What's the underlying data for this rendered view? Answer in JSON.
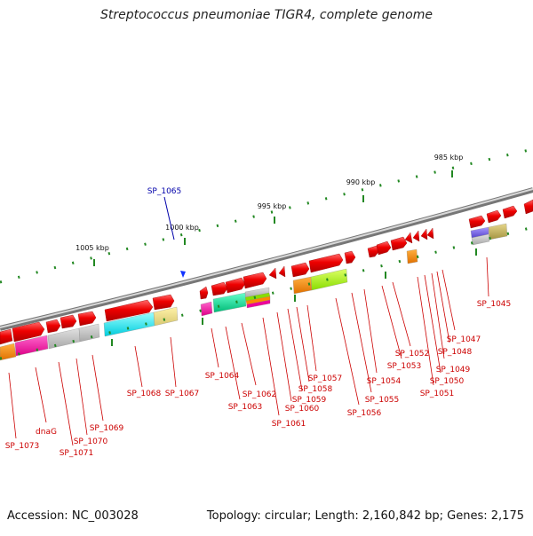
{
  "title": "Streptococcus pneumoniae TIGR4, complete genome",
  "accession": "Accession: NC_003028",
  "summary": "Topology: circular; Length: 2,160,842 bp; Genes: 2,175",
  "ruler_labels": [
    "985 kbp",
    "990 kbp",
    "995 kbp",
    "1000 kbp",
    "1005 kbp"
  ],
  "highlight_gene": "SP_1065",
  "colors": {
    "gene": "#ee0000",
    "label": "#cc0000",
    "highlight": "#0000aa",
    "backbone": "#888888",
    "tick": "#228822"
  },
  "gene_labels": [
    "SP_1073",
    "dnaG",
    "SP_1071",
    "SP_1070",
    "SP_1069",
    "SP_1068",
    "SP_1067",
    "SP_1064",
    "SP_1063",
    "SP_1062",
    "SP_1061",
    "SP_1060",
    "SP_1059",
    "SP_1058",
    "SP_1057",
    "SP_1056",
    "SP_1055",
    "SP_1054",
    "SP_1053",
    "SP_1052",
    "SP_1051",
    "SP_1050",
    "SP_1049",
    "SP_1048",
    "SP_1047",
    "SP_1045"
  ]
}
